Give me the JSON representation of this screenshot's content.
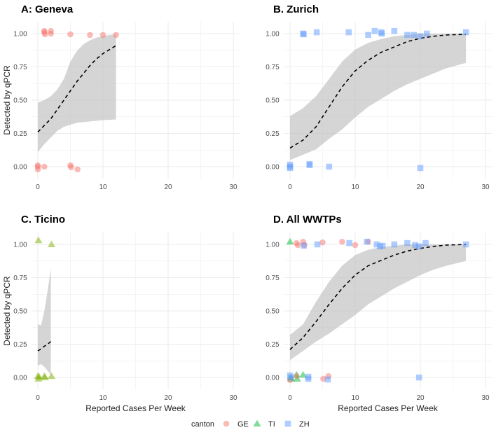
{
  "chart_data": {
    "type": "scatter",
    "colors": {
      "GE": "#F8766D",
      "TI": "#00BA38",
      "TI_single": "#7CAE00",
      "ZH": "#619CFF",
      "ribbon": "#bfbfbf",
      "fit": "#000000",
      "grid": "#ebebeb"
    },
    "legend": {
      "title": "canton",
      "placement": "bottom",
      "entries": [
        {
          "key": "GE",
          "label": "GE",
          "shape": "circle"
        },
        {
          "key": "TI",
          "label": "TI",
          "shape": "triangle"
        },
        {
          "key": "ZH",
          "label": "ZH",
          "shape": "square"
        }
      ]
    },
    "panels": [
      {
        "id": "A",
        "title": "A: Geneva",
        "xlabel": "",
        "ylabel": "Detected by qPCR",
        "xlim": [
          -1,
          31
        ],
        "ylim": [
          -0.09,
          1.09
        ],
        "xticks": [
          "0",
          "10",
          "20",
          "30"
        ],
        "yticks": [
          "0.00",
          "0.25",
          "0.50",
          "0.75",
          "1.00"
        ],
        "ribbon": [
          [
            0,
            0.11,
            0.26,
            0.48
          ],
          [
            1,
            0.17,
            0.31,
            0.5
          ],
          [
            2,
            0.22,
            0.36,
            0.53
          ],
          [
            3,
            0.27,
            0.43,
            0.58
          ],
          [
            4,
            0.3,
            0.5,
            0.66
          ],
          [
            5,
            0.315,
            0.57,
            0.79
          ],
          [
            6,
            0.33,
            0.64,
            0.87
          ],
          [
            7,
            0.335,
            0.7,
            0.92
          ],
          [
            8,
            0.34,
            0.76,
            0.95
          ],
          [
            9,
            0.345,
            0.81,
            0.97
          ],
          [
            10,
            0.35,
            0.85,
            0.98
          ],
          [
            11,
            0.352,
            0.88,
            0.99
          ],
          [
            12,
            0.355,
            0.91,
            0.995
          ]
        ],
        "points": [
          {
            "g": "GE",
            "x": 1,
            "y": 1.02
          },
          {
            "g": "GE",
            "x": 1,
            "y": 1.01
          },
          {
            "g": "GE",
            "x": 1.1,
            "y": 0.995
          },
          {
            "g": "GE",
            "x": 2,
            "y": 1.02
          },
          {
            "g": "GE",
            "x": 2,
            "y": 1.0
          },
          {
            "g": "GE",
            "x": 5,
            "y": 0.995
          },
          {
            "g": "GE",
            "x": 8,
            "y": 0.99
          },
          {
            "g": "GE",
            "x": 10,
            "y": 0.99
          },
          {
            "g": "GE",
            "x": 12,
            "y": 0.99
          },
          {
            "g": "GE",
            "x": 0,
            "y": 0.01
          },
          {
            "g": "GE",
            "x": 0,
            "y": 0
          },
          {
            "g": "GE",
            "x": 0,
            "y": -0.02
          },
          {
            "g": "GE",
            "x": 1,
            "y": 0
          },
          {
            "g": "GE",
            "x": 5,
            "y": 0.01
          },
          {
            "g": "GE",
            "x": 5.1,
            "y": -0.005
          },
          {
            "g": "GE",
            "x": 6.1,
            "y": -0.02
          }
        ]
      },
      {
        "id": "B",
        "title": "B. Zurich",
        "xlabel": "",
        "ylabel": "",
        "xlim": [
          -1,
          31
        ],
        "ylim": [
          -0.09,
          1.09
        ],
        "xticks": [
          "0",
          "10",
          "20",
          "30"
        ],
        "yticks": [
          "0.00",
          "0.25",
          "0.50",
          "0.75",
          "1.00"
        ],
        "ribbon": [
          [
            0,
            0.05,
            0.14,
            0.38
          ],
          [
            2,
            0.09,
            0.2,
            0.44
          ],
          [
            4,
            0.13,
            0.3,
            0.53
          ],
          [
            6,
            0.21,
            0.45,
            0.66
          ],
          [
            8,
            0.28,
            0.6,
            0.79
          ],
          [
            10,
            0.37,
            0.72,
            0.88
          ],
          [
            12,
            0.45,
            0.8,
            0.93
          ],
          [
            14,
            0.51,
            0.86,
            0.96
          ],
          [
            16,
            0.57,
            0.9,
            0.98
          ],
          [
            18,
            0.62,
            0.94,
            0.99
          ],
          [
            20,
            0.66,
            0.965,
            1.0
          ],
          [
            22,
            0.7,
            0.98,
            1.0
          ],
          [
            24,
            0.74,
            0.99,
            1.0
          ],
          [
            27,
            0.78,
            0.995,
            1.0
          ]
        ],
        "points": [
          {
            "g": "ZH",
            "x": 2,
            "y": 1.0
          },
          {
            "g": "ZH",
            "x": 2.1,
            "y": 0.995
          },
          {
            "g": "ZH",
            "x": 4.1,
            "y": 1.01
          },
          {
            "g": "ZH",
            "x": 9,
            "y": 1.01
          },
          {
            "g": "ZH",
            "x": 12,
            "y": 0.99
          },
          {
            "g": "ZH",
            "x": 13,
            "y": 1.02
          },
          {
            "g": "ZH",
            "x": 14,
            "y": 1.01
          },
          {
            "g": "ZH",
            "x": 14.1,
            "y": 1.0
          },
          {
            "g": "ZH",
            "x": 16,
            "y": 1.02
          },
          {
            "g": "ZH",
            "x": 18,
            "y": 0.99
          },
          {
            "g": "ZH",
            "x": 19,
            "y": 0.99
          },
          {
            "g": "ZH",
            "x": 20,
            "y": 0.98
          },
          {
            "g": "ZH",
            "x": 21,
            "y": 1.0
          },
          {
            "g": "ZH",
            "x": 27,
            "y": 1.01
          },
          {
            "g": "ZH",
            "x": 0,
            "y": 0.015
          },
          {
            "g": "ZH",
            "x": 0,
            "y": 0
          },
          {
            "g": "ZH",
            "x": 0,
            "y": -0.01
          },
          {
            "g": "ZH",
            "x": 3,
            "y": 0.02
          },
          {
            "g": "ZH",
            "x": 3,
            "y": 0.012
          },
          {
            "g": "ZH",
            "x": 6,
            "y": 0
          },
          {
            "g": "ZH",
            "x": 20,
            "y": -0.01
          }
        ]
      },
      {
        "id": "C",
        "title": "C. Ticino",
        "xlabel": "Reported Cases Per Week",
        "ylabel": "Detected by qPCR",
        "xlim": [
          -1,
          31
        ],
        "ylim": [
          -0.09,
          1.09
        ],
        "xticks": [
          "0",
          "10",
          "20",
          "30"
        ],
        "yticks": [
          "0.00",
          "0.25",
          "0.50",
          "0.75",
          "1.00"
        ],
        "ribbon": [
          [
            0,
            0.09,
            0.2,
            0.4
          ],
          [
            0.5,
            0.1,
            0.215,
            0.39
          ],
          [
            1,
            0.08,
            0.235,
            0.5
          ],
          [
            1.5,
            0.05,
            0.25,
            0.65
          ],
          [
            2,
            0.02,
            0.27,
            0.82
          ]
        ],
        "points": [
          {
            "g": "TI_single",
            "x": 0.1,
            "y": 1.03
          },
          {
            "g": "TI_single",
            "x": 2.1,
            "y": 1.0
          },
          {
            "g": "TI_single",
            "x": 0,
            "y": 0.01
          },
          {
            "g": "TI_single",
            "x": 0.1,
            "y": -0.01
          },
          {
            "g": "TI_single",
            "x": 0.2,
            "y": 0.005
          },
          {
            "g": "TI_single",
            "x": 1,
            "y": 0.01
          },
          {
            "g": "TI_single",
            "x": 1.1,
            "y": 0
          },
          {
            "g": "TI_single",
            "x": 2.1,
            "y": 0.01
          }
        ]
      },
      {
        "id": "D",
        "title": "D. All WWTPs",
        "xlabel": "Reported Cases Per Week",
        "ylabel": "",
        "xlim": [
          -1,
          31
        ],
        "ylim": [
          -0.09,
          1.09
        ],
        "xticks": [
          "0",
          "10",
          "20",
          "30"
        ],
        "yticks": [
          "0.00",
          "0.25",
          "0.50",
          "0.75",
          "1.00"
        ],
        "ribbon": [
          [
            0,
            0.13,
            0.21,
            0.32
          ],
          [
            2,
            0.2,
            0.3,
            0.4
          ],
          [
            4,
            0.27,
            0.42,
            0.57
          ],
          [
            6,
            0.33,
            0.55,
            0.72
          ],
          [
            8,
            0.4,
            0.67,
            0.84
          ],
          [
            10,
            0.47,
            0.77,
            0.92
          ],
          [
            12,
            0.55,
            0.84,
            0.96
          ],
          [
            14,
            0.61,
            0.88,
            0.98
          ],
          [
            16,
            0.67,
            0.92,
            0.99
          ],
          [
            18,
            0.72,
            0.95,
            1.0
          ],
          [
            20,
            0.77,
            0.97,
            1.0
          ],
          [
            22,
            0.81,
            0.985,
            1.0
          ],
          [
            24,
            0.84,
            0.995,
            1.0
          ],
          [
            27,
            0.875,
            1.0,
            1.0
          ]
        ],
        "points": [
          {
            "g": "TI",
            "x": 0,
            "y": 1.02
          },
          {
            "g": "TI",
            "x": 0.1,
            "y": 0.0
          },
          {
            "g": "TI",
            "x": 0.2,
            "y": -0.01
          },
          {
            "g": "TI",
            "x": 1,
            "y": 0.02
          },
          {
            "g": "TI",
            "x": 1.1,
            "y": -0.01
          },
          {
            "g": "TI",
            "x": 2,
            "y": 0.02
          },
          {
            "g": "GE",
            "x": 1,
            "y": 1.01
          },
          {
            "g": "GE",
            "x": 1.2,
            "y": 0.995
          },
          {
            "g": "GE",
            "x": 2,
            "y": 1.02
          },
          {
            "g": "GE",
            "x": 2.2,
            "y": 0.995
          },
          {
            "g": "GE",
            "x": 5,
            "y": 1.015
          },
          {
            "g": "GE",
            "x": 8,
            "y": 1.02
          },
          {
            "g": "GE",
            "x": 10,
            "y": 0.995
          },
          {
            "g": "GE",
            "x": 12,
            "y": 1.02
          },
          {
            "g": "GE",
            "x": 0,
            "y": -0.02
          },
          {
            "g": "GE",
            "x": 1,
            "y": 0.01
          },
          {
            "g": "GE",
            "x": 5.1,
            "y": -0.01
          },
          {
            "g": "GE",
            "x": 5.9,
            "y": 0.01
          },
          {
            "g": "ZH",
            "x": 2.1,
            "y": 0.99
          },
          {
            "g": "ZH",
            "x": 4.2,
            "y": 1.0
          },
          {
            "g": "ZH",
            "x": 9.1,
            "y": 1.01
          },
          {
            "g": "ZH",
            "x": 11.8,
            "y": 1.02
          },
          {
            "g": "ZH",
            "x": 13.3,
            "y": 1.0
          },
          {
            "g": "ZH",
            "x": 14.2,
            "y": 0.99
          },
          {
            "g": "ZH",
            "x": 13.8,
            "y": 0.985
          },
          {
            "g": "ZH",
            "x": 16,
            "y": 1.0
          },
          {
            "g": "ZH",
            "x": 18,
            "y": 1.01
          },
          {
            "g": "ZH",
            "x": 19.2,
            "y": 0.995
          },
          {
            "g": "ZH",
            "x": 19.8,
            "y": 0.985
          },
          {
            "g": "ZH",
            "x": 20.8,
            "y": 1.01
          },
          {
            "g": "ZH",
            "x": 27,
            "y": 1.0
          },
          {
            "g": "ZH",
            "x": 0,
            "y": 0.015
          },
          {
            "g": "ZH",
            "x": 0.1,
            "y": 0
          },
          {
            "g": "ZH",
            "x": 2.8,
            "y": 0.005
          },
          {
            "g": "ZH",
            "x": 2.8,
            "y": -0.01
          },
          {
            "g": "ZH",
            "x": 5.8,
            "y": -0.015
          },
          {
            "g": "ZH",
            "x": 19.8,
            "y": 0
          }
        ]
      }
    ]
  }
}
